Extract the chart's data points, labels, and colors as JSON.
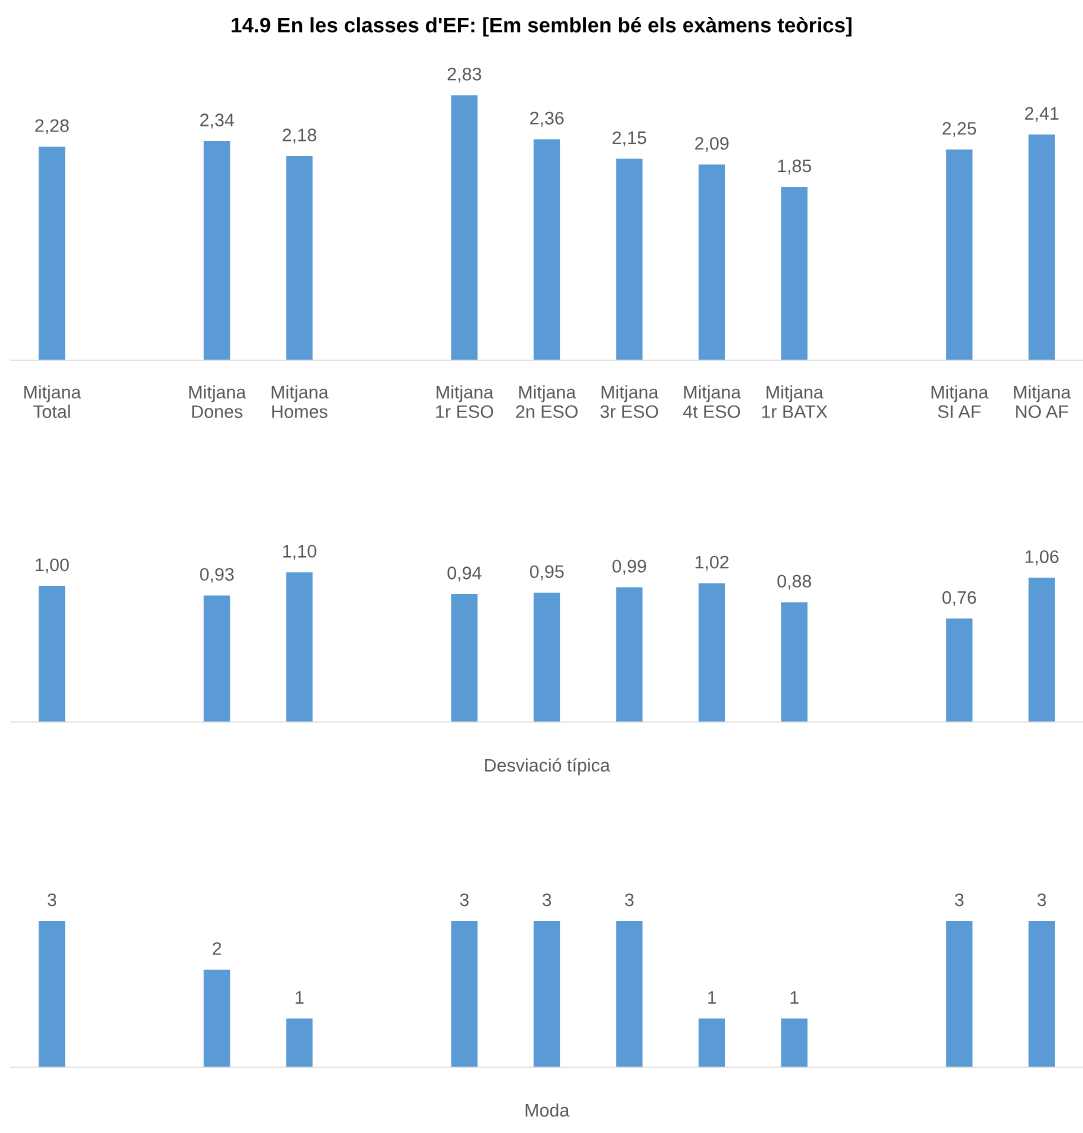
{
  "chart_data": [
    {
      "type": "bar",
      "title": "14.9 En les classes d'EF: [Em semblen bé els exàmens teòrics]",
      "categories": [
        "Mitjana\nTotal",
        null,
        "Mitjana\nDones",
        "Mitjana\nHomes",
        null,
        "Mitjana\n1r ESO",
        "Mitjana\n2n ESO",
        "Mitjana\n3r ESO",
        "Mitjana\n4t ESO",
        "Mitjana\n1r BATX",
        null,
        "Mitjana\nSI AF",
        "Mitjana\nNO AF"
      ],
      "values": [
        2.28,
        null,
        2.34,
        2.18,
        null,
        2.83,
        2.36,
        2.15,
        2.09,
        1.85,
        null,
        2.25,
        2.41
      ],
      "value_labels": [
        "2,28",
        null,
        "2,34",
        "2,18",
        null,
        "2,83",
        "2,36",
        "2,15",
        "2,09",
        "1,85",
        null,
        "2,25",
        "2,41"
      ],
      "color": "#5b9bd5",
      "grid": false,
      "legend": false
    },
    {
      "type": "bar",
      "xlabel": "Desviació típica",
      "categories": [
        null,
        null,
        null,
        null,
        null,
        null,
        null,
        null,
        null,
        null,
        null,
        null,
        null
      ],
      "values": [
        1.0,
        null,
        0.93,
        1.1,
        null,
        0.94,
        0.95,
        0.99,
        1.02,
        0.88,
        null,
        0.76,
        1.06
      ],
      "value_labels": [
        "1,00",
        null,
        "0,93",
        "1,10",
        null,
        "0,94",
        "0,95",
        "0,99",
        "1,02",
        "0,88",
        null,
        "0,76",
        "1,06"
      ],
      "color": "#5b9bd5",
      "grid": false,
      "legend": false
    },
    {
      "type": "bar",
      "xlabel": "Moda",
      "categories": [
        null,
        null,
        null,
        null,
        null,
        null,
        null,
        null,
        null,
        null,
        null,
        null,
        null
      ],
      "values": [
        3,
        null,
        2,
        1,
        null,
        3,
        3,
        3,
        1,
        1,
        null,
        3,
        3
      ],
      "value_labels": [
        "3",
        null,
        "2",
        "1",
        null,
        "3",
        "3",
        "3",
        "1",
        "1",
        null,
        "3",
        "3"
      ],
      "color": "#5b9bd5",
      "grid": false,
      "legend": false
    }
  ]
}
